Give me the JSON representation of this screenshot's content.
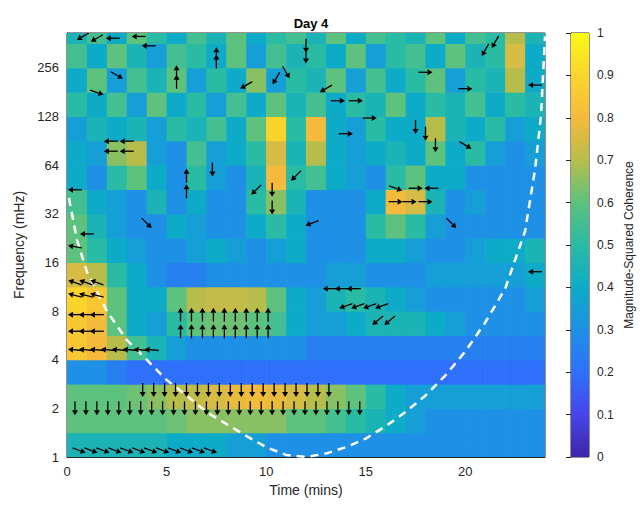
{
  "chart_data": {
    "type": "wavelet_coherence",
    "title": "Day 4",
    "x_label": "Time (mins)",
    "y_label": "Frequency (mHz)",
    "xlim": [
      0,
      24
    ],
    "xticks": [
      0,
      5,
      10,
      15,
      20
    ],
    "ylim": [
      1,
      420
    ],
    "yticks": [
      1,
      2,
      4,
      8,
      16,
      32,
      64,
      128,
      256
    ],
    "log": "y",
    "grid": false,
    "cells": {
      "x_edges": [
        0,
        1,
        2,
        3,
        4,
        5,
        6,
        7,
        8,
        9,
        10,
        11,
        12,
        13,
        14,
        15,
        16,
        17,
        18,
        19,
        20,
        21,
        22,
        23,
        24
      ],
      "y_edges": [
        1,
        1.414,
        2,
        2.828,
        4,
        5.657,
        8,
        11.31,
        16,
        22.63,
        32,
        45.25,
        64,
        90.51,
        128,
        181,
        256,
        362,
        512
      ],
      "values": [
        [
          0.45,
          0.45,
          0.45,
          0.45,
          0.45,
          0.4,
          0.4,
          0.4,
          0.35,
          0.35,
          0.3,
          0.3,
          0.3,
          0.3,
          0.3,
          0.3,
          0.3,
          0.3,
          0.3,
          0.3,
          0.3,
          0.3,
          0.3,
          0.3
        ],
        [
          0.6,
          0.6,
          0.6,
          0.6,
          0.6,
          0.62,
          0.65,
          0.65,
          0.65,
          0.65,
          0.65,
          0.6,
          0.6,
          0.55,
          0.5,
          0.45,
          0.4,
          0.35,
          0.3,
          0.3,
          0.3,
          0.3,
          0.3,
          0.3
        ],
        [
          0.6,
          0.6,
          0.6,
          0.62,
          0.65,
          0.7,
          0.72,
          0.75,
          0.78,
          0.8,
          0.78,
          0.75,
          0.7,
          0.65,
          0.6,
          0.5,
          0.4,
          0.35,
          0.35,
          0.35,
          0.35,
          0.35,
          0.35,
          0.35
        ],
        [
          0.3,
          0.3,
          0.25,
          0.2,
          0.2,
          0.2,
          0.2,
          0.2,
          0.2,
          0.2,
          0.2,
          0.2,
          0.2,
          0.2,
          0.2,
          0.2,
          0.2,
          0.2,
          0.2,
          0.2,
          0.2,
          0.2,
          0.2,
          0.2
        ],
        [
          0.85,
          0.8,
          0.7,
          0.55,
          0.45,
          0.35,
          0.3,
          0.3,
          0.3,
          0.3,
          0.3,
          0.3,
          0.25,
          0.25,
          0.25,
          0.25,
          0.25,
          0.25,
          0.25,
          0.25,
          0.25,
          0.25,
          0.25,
          0.25
        ],
        [
          0.85,
          0.8,
          0.6,
          0.4,
          0.35,
          0.5,
          0.6,
          0.62,
          0.62,
          0.6,
          0.55,
          0.4,
          0.35,
          0.35,
          0.4,
          0.45,
          0.45,
          0.45,
          0.4,
          0.35,
          0.3,
          0.3,
          0.3,
          0.3
        ],
        [
          0.9,
          0.85,
          0.6,
          0.4,
          0.4,
          0.6,
          0.7,
          0.72,
          0.72,
          0.7,
          0.6,
          0.4,
          0.35,
          0.45,
          0.5,
          0.45,
          0.4,
          0.35,
          0.3,
          0.3,
          0.3,
          0.3,
          0.3,
          0.35
        ],
        [
          0.75,
          0.7,
          0.5,
          0.4,
          0.3,
          0.25,
          0.25,
          0.3,
          0.3,
          0.3,
          0.3,
          0.3,
          0.3,
          0.35,
          0.35,
          0.3,
          0.3,
          0.3,
          0.35,
          0.35,
          0.35,
          0.35,
          0.35,
          0.4
        ],
        [
          0.6,
          0.5,
          0.4,
          0.35,
          0.3,
          0.3,
          0.35,
          0.4,
          0.35,
          0.3,
          0.35,
          0.4,
          0.3,
          0.3,
          0.3,
          0.4,
          0.4,
          0.35,
          0.3,
          0.3,
          0.35,
          0.4,
          0.4,
          0.45
        ],
        [
          0.6,
          0.45,
          0.35,
          0.3,
          0.3,
          0.4,
          0.35,
          0.3,
          0.3,
          0.4,
          0.5,
          0.4,
          0.3,
          0.3,
          0.3,
          0.5,
          0.6,
          0.5,
          0.35,
          0.3,
          0.3,
          0.3,
          0.3,
          0.3
        ],
        [
          0.55,
          0.4,
          0.35,
          0.3,
          0.45,
          0.3,
          0.4,
          0.3,
          0.3,
          0.5,
          0.65,
          0.45,
          0.3,
          0.3,
          0.3,
          0.4,
          0.8,
          0.75,
          0.45,
          0.3,
          0.35,
          0.3,
          0.3,
          0.3
        ],
        [
          0.4,
          0.3,
          0.5,
          0.6,
          0.4,
          0.3,
          0.5,
          0.35,
          0.3,
          0.45,
          0.8,
          0.5,
          0.55,
          0.4,
          0.35,
          0.3,
          0.5,
          0.6,
          0.4,
          0.4,
          0.3,
          0.3,
          0.3,
          0.3
        ],
        [
          0.4,
          0.35,
          0.65,
          0.7,
          0.35,
          0.3,
          0.55,
          0.35,
          0.4,
          0.5,
          0.75,
          0.45,
          0.7,
          0.4,
          0.35,
          0.4,
          0.45,
          0.4,
          0.6,
          0.4,
          0.5,
          0.35,
          0.3,
          0.35
        ],
        [
          0.35,
          0.45,
          0.4,
          0.45,
          0.35,
          0.5,
          0.45,
          0.55,
          0.4,
          0.6,
          0.9,
          0.5,
          0.8,
          0.4,
          0.35,
          0.5,
          0.4,
          0.4,
          0.7,
          0.45,
          0.4,
          0.5,
          0.35,
          0.4
        ],
        [
          0.5,
          0.4,
          0.55,
          0.35,
          0.6,
          0.4,
          0.5,
          0.35,
          0.55,
          0.4,
          0.6,
          0.45,
          0.55,
          0.4,
          0.5,
          0.45,
          0.6,
          0.4,
          0.5,
          0.45,
          0.55,
          0.4,
          0.5,
          0.45
        ],
        [
          0.4,
          0.6,
          0.35,
          0.55,
          0.45,
          0.6,
          0.35,
          0.5,
          0.4,
          0.65,
          0.35,
          0.5,
          0.45,
          0.6,
          0.35,
          0.55,
          0.4,
          0.5,
          0.6,
          0.35,
          0.5,
          0.45,
          0.7,
          0.4
        ],
        [
          0.55,
          0.4,
          0.6,
          0.45,
          0.35,
          0.55,
          0.5,
          0.4,
          0.6,
          0.35,
          0.55,
          0.45,
          0.5,
          0.4,
          0.6,
          0.35,
          0.5,
          0.55,
          0.4,
          0.6,
          0.45,
          0.5,
          0.75,
          0.4
        ],
        [
          0.45,
          0.55,
          0.4,
          0.6,
          0.5,
          0.4,
          0.55,
          0.45,
          0.6,
          0.4,
          0.5,
          0.55,
          0.45,
          0.6,
          0.4,
          0.55,
          0.5,
          0.45,
          0.6,
          0.4,
          0.55,
          0.5,
          0.7,
          0.45
        ]
      ]
    },
    "colorbar": {
      "label": "Magnitude-Squared Coherence",
      "range": [
        0,
        1
      ],
      "ticks": [
        0,
        0.1,
        0.2,
        0.3,
        0.4,
        0.5,
        0.6,
        0.7,
        0.8,
        0.9,
        1
      ]
    },
    "phase_arrows": [
      [
        0.6,
        1.1,
        -20
      ],
      [
        1.2,
        1.1,
        -20
      ],
      [
        1.8,
        1.1,
        -20
      ],
      [
        2.4,
        1.1,
        -20
      ],
      [
        3.0,
        1.1,
        -20
      ],
      [
        3.6,
        1.1,
        -20
      ],
      [
        4.2,
        1.1,
        -20
      ],
      [
        4.8,
        1.1,
        -20
      ],
      [
        5.4,
        1.1,
        -20
      ],
      [
        6.0,
        1.1,
        -20
      ],
      [
        6.6,
        1.1,
        -20
      ],
      [
        7.2,
        1.1,
        -20
      ],
      [
        0.4,
        2,
        -90
      ],
      [
        0.95,
        2,
        -90
      ],
      [
        1.5,
        2,
        -90
      ],
      [
        2.05,
        2,
        -90
      ],
      [
        2.6,
        2,
        -90
      ],
      [
        3.15,
        2,
        -90
      ],
      [
        3.7,
        2,
        -90
      ],
      [
        4.25,
        2,
        -90
      ],
      [
        4.8,
        2,
        -90
      ],
      [
        5.35,
        2,
        -90
      ],
      [
        5.9,
        2,
        -90
      ],
      [
        6.45,
        2,
        -90
      ],
      [
        7.0,
        2,
        -90
      ],
      [
        7.55,
        2,
        -90
      ],
      [
        8.1,
        2,
        -90
      ],
      [
        8.65,
        2,
        -90
      ],
      [
        9.2,
        2,
        -90
      ],
      [
        9.75,
        2,
        -90
      ],
      [
        10.3,
        2,
        -90
      ],
      [
        10.85,
        2,
        -90
      ],
      [
        11.4,
        2,
        -90
      ],
      [
        11.95,
        2,
        -90
      ],
      [
        12.5,
        2,
        -90
      ],
      [
        13.05,
        2,
        -90
      ],
      [
        13.6,
        2,
        -90
      ],
      [
        14.15,
        2,
        -90
      ],
      [
        14.7,
        2,
        -90
      ],
      [
        3.8,
        2.6,
        -90
      ],
      [
        4.35,
        2.6,
        -90
      ],
      [
        4.9,
        2.6,
        -90
      ],
      [
        5.45,
        2.6,
        -90
      ],
      [
        6.0,
        2.6,
        -90
      ],
      [
        6.55,
        2.6,
        -90
      ],
      [
        7.1,
        2.6,
        -90
      ],
      [
        7.65,
        2.6,
        -90
      ],
      [
        8.2,
        2.6,
        -90
      ],
      [
        8.75,
        2.6,
        -90
      ],
      [
        9.3,
        2.6,
        -90
      ],
      [
        9.85,
        2.6,
        -90
      ],
      [
        10.4,
        2.6,
        -90
      ],
      [
        10.95,
        2.6,
        -90
      ],
      [
        11.5,
        2.6,
        -90
      ],
      [
        12.05,
        2.6,
        -90
      ],
      [
        12.6,
        2.6,
        -90
      ],
      [
        13.15,
        2.6,
        -90
      ],
      [
        0.4,
        4.6,
        175
      ],
      [
        0.95,
        4.6,
        175
      ],
      [
        1.5,
        4.6,
        175
      ],
      [
        2.05,
        4.6,
        175
      ],
      [
        2.6,
        4.6,
        175
      ],
      [
        3.15,
        4.6,
        175
      ],
      [
        3.7,
        4.6,
        175
      ],
      [
        4.25,
        4.6,
        175
      ],
      [
        5.7,
        6.0,
        90
      ],
      [
        6.25,
        6.0,
        90
      ],
      [
        6.8,
        6.0,
        90
      ],
      [
        7.35,
        6.0,
        90
      ],
      [
        7.9,
        6.0,
        90
      ],
      [
        8.45,
        6.0,
        90
      ],
      [
        9.0,
        6.0,
        90
      ],
      [
        9.55,
        6.0,
        90
      ],
      [
        10.1,
        6.0,
        90
      ],
      [
        5.7,
        7.6,
        90
      ],
      [
        6.25,
        7.6,
        90
      ],
      [
        6.8,
        7.6,
        90
      ],
      [
        7.35,
        7.6,
        90
      ],
      [
        7.9,
        7.6,
        90
      ],
      [
        8.45,
        7.6,
        90
      ],
      [
        9.0,
        7.6,
        90
      ],
      [
        9.55,
        7.6,
        90
      ],
      [
        10.1,
        7.6,
        90
      ],
      [
        0.4,
        6.0,
        180
      ],
      [
        0.95,
        6.0,
        180
      ],
      [
        1.5,
        6.0,
        180
      ],
      [
        0.4,
        7.6,
        180
      ],
      [
        0.95,
        7.6,
        180
      ],
      [
        1.5,
        7.6,
        180
      ],
      [
        0.4,
        10,
        165
      ],
      [
        0.95,
        10,
        165
      ],
      [
        1.5,
        10,
        165
      ],
      [
        0.4,
        12,
        160
      ],
      [
        0.95,
        12,
        160
      ],
      [
        1.5,
        12,
        160
      ],
      [
        13.2,
        11,
        180
      ],
      [
        13.8,
        11,
        180
      ],
      [
        14.4,
        11,
        180
      ],
      [
        14.0,
        8.6,
        -160
      ],
      [
        14.6,
        8.6,
        -160
      ],
      [
        15.2,
        8.6,
        -160
      ],
      [
        15.8,
        8.6,
        -160
      ],
      [
        15.6,
        7,
        -140
      ],
      [
        16.2,
        7,
        -140
      ],
      [
        0.4,
        45,
        180
      ],
      [
        0.4,
        20,
        170
      ],
      [
        1,
        24,
        180
      ],
      [
        2.2,
        90,
        180
      ],
      [
        3,
        90,
        180
      ],
      [
        2.2,
        78,
        180
      ],
      [
        3,
        78,
        180
      ],
      [
        4,
        28,
        -45
      ],
      [
        6,
        55,
        90
      ],
      [
        6,
        44,
        90
      ],
      [
        7.3,
        60,
        -90
      ],
      [
        9.5,
        45,
        -135
      ],
      [
        10.3,
        35,
        -90
      ],
      [
        10.3,
        45,
        -90
      ],
      [
        11.5,
        55,
        -135
      ],
      [
        12.3,
        28,
        -160
      ],
      [
        16.5,
        46,
        -20
      ],
      [
        17.5,
        46,
        0
      ],
      [
        18.3,
        46,
        180
      ],
      [
        16.5,
        38,
        0
      ],
      [
        17.2,
        38,
        0
      ],
      [
        18,
        38,
        0
      ],
      [
        19.3,
        28,
        -45
      ],
      [
        18.5,
        85,
        -90
      ],
      [
        18,
        100,
        -90
      ],
      [
        20,
        85,
        -30
      ],
      [
        13.6,
        160,
        0
      ],
      [
        14,
        100,
        0
      ],
      [
        15.2,
        125,
        0
      ],
      [
        17.5,
        110,
        -90
      ],
      [
        9,
        200,
        -150
      ],
      [
        10.5,
        220,
        -120
      ],
      [
        11,
        240,
        -60
      ],
      [
        5.5,
        210,
        90
      ],
      [
        5.5,
        240,
        90
      ],
      [
        7.5,
        280,
        90
      ],
      [
        7.5,
        310,
        90
      ],
      [
        4.1,
        350,
        180
      ],
      [
        3.6,
        400,
        180
      ],
      [
        0.8,
        400,
        -150
      ],
      [
        1.5,
        390,
        -150
      ],
      [
        2.3,
        390,
        180
      ],
      [
        14.5,
        160,
        0
      ],
      [
        21,
        330,
        -120
      ],
      [
        21.5,
        370,
        -120
      ],
      [
        23.5,
        200,
        180
      ],
      [
        23.5,
        14,
        180
      ],
      [
        2.5,
        230,
        -30
      ],
      [
        1.5,
        180,
        -20
      ],
      [
        18,
        240,
        0
      ],
      [
        20,
        190,
        0
      ],
      [
        13,
        190,
        -150
      ],
      [
        12,
        300,
        -90
      ],
      [
        12,
        350,
        -90
      ]
    ],
    "cone_of_influence": {
      "t": [
        0.1,
        0.5,
        1,
        2,
        3,
        4,
        5,
        6,
        7,
        8,
        9,
        10,
        11,
        12,
        13,
        14,
        15,
        16,
        17,
        18,
        19,
        20,
        21,
        22,
        23,
        23.5,
        23.8,
        24
      ],
      "f": [
        40,
        22,
        14,
        8,
        5.3,
        4,
        3,
        2.4,
        1.9,
        1.6,
        1.35,
        1.15,
        1.03,
        1,
        1.05,
        1.15,
        1.3,
        1.55,
        1.9,
        2.4,
        3.2,
        4.5,
        6.8,
        11,
        25,
        60,
        130,
        400
      ],
      "color": "#ffffff",
      "line_style": "dashed"
    }
  }
}
